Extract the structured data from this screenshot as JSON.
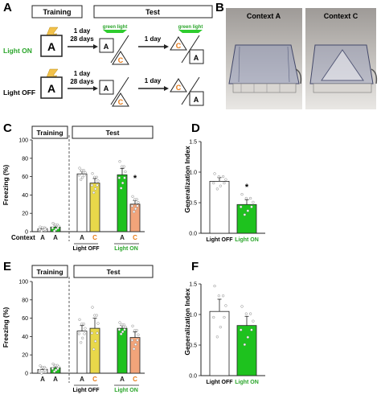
{
  "panel_letters": [
    "A",
    "B",
    "C",
    "D",
    "E",
    "F"
  ],
  "panel_a": {
    "training_label": "Training",
    "test_label": "Test",
    "green_light_label": "green light",
    "delay_long": [
      "1 day",
      "28 days"
    ],
    "delay_short": "1 day",
    "context_a": "A",
    "context_c": "C",
    "row_light_on": "Light ON",
    "row_light_off": "Light OFF"
  },
  "panel_b": {
    "context_a_title": "Context A",
    "context_c_title": "Context C"
  },
  "colors": {
    "green": "#1ec21e",
    "yellow": "#e8d84a",
    "orange": "#f2a47a",
    "orange_text": "#e87a16",
    "green_text": "#2aa52a"
  },
  "freezing_axis": {
    "ylabel": "Freezing (%)",
    "ticks": [
      "0",
      "20",
      "40",
      "60",
      "80",
      "100"
    ],
    "training_label": "Training",
    "test_label": "Test",
    "context_word": "Context",
    "bar_letters": [
      "A",
      "A",
      "A",
      "C",
      "A",
      "C"
    ],
    "group_light_off": "Light OFF",
    "group_light_on": "Light ON"
  },
  "generalization_axis": {
    "ylabel": "Generalization Index",
    "ticks": [
      "0.0",
      "0.5",
      "1.0",
      "1.5"
    ],
    "group_light_off": "Light OFF",
    "group_light_on": "Light ON"
  },
  "chart_data": [
    {
      "type": "bar",
      "panel": "C",
      "ylabel": "Freezing (%)",
      "ylim": [
        0,
        100
      ],
      "categories": [
        "Training A",
        "Training A",
        "Light OFF A",
        "Light OFF C",
        "Light ON A",
        "Light ON C"
      ],
      "values": [
        3,
        5,
        63,
        53,
        62,
        30
      ],
      "errors": [
        1,
        2,
        3,
        5,
        7,
        4
      ],
      "significance": "*",
      "significance_bar": 5
    },
    {
      "type": "bar",
      "panel": "D",
      "ylabel": "Generalization Index",
      "ylim": [
        0,
        1.5
      ],
      "categories": [
        "Light OFF",
        "Light ON"
      ],
      "values": [
        0.85,
        0.47
      ],
      "errors": [
        0.06,
        0.08
      ],
      "significance": "*",
      "significance_bar": 1
    },
    {
      "type": "bar",
      "panel": "E",
      "ylabel": "Freezing (%)",
      "ylim": [
        0,
        100
      ],
      "categories": [
        "Training A",
        "Training A",
        "Light OFF A",
        "Light OFF C",
        "Light ON A",
        "Light ON C"
      ],
      "values": [
        4,
        6,
        46,
        49,
        49,
        39
      ],
      "errors": [
        2,
        2,
        6,
        11,
        3,
        6
      ]
    },
    {
      "type": "bar",
      "panel": "F",
      "ylabel": "Generalization Index",
      "ylim": [
        0,
        1.5
      ],
      "categories": [
        "Light OFF",
        "Light ON"
      ],
      "values": [
        1.05,
        0.82
      ],
      "errors": [
        0.2,
        0.15
      ]
    }
  ]
}
